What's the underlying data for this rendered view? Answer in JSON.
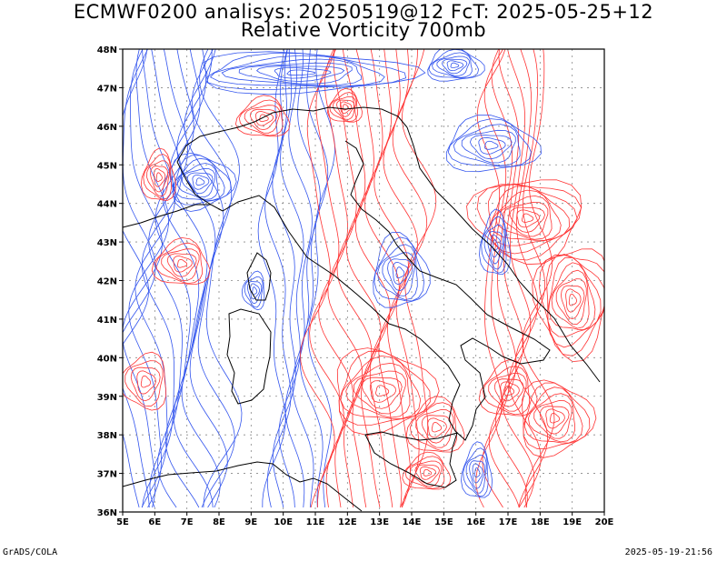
{
  "title_line1": "ECMWF0200 analisys: 20250519@12 FcT: 2025-05-25+12",
  "title_line2": "Relative Vorticity 700mb",
  "lat_labels": [
    "48N",
    "47N",
    "46N",
    "45N",
    "44N",
    "43N",
    "42N",
    "41N",
    "40N",
    "39N",
    "38N",
    "37N",
    "36N"
  ],
  "lon_labels": [
    "5E",
    "6E",
    "7E",
    "8E",
    "9E",
    "10E",
    "11E",
    "12E",
    "13E",
    "14E",
    "15E",
    "16E",
    "17E",
    "18E",
    "19E",
    "20E"
  ],
  "footer_left": "GrADS/COLA",
  "footer_right": "2025-05-19-21:56",
  "colors": {
    "positive": "#ff3333",
    "negative": "#3355ee",
    "coast": "#000000"
  }
}
